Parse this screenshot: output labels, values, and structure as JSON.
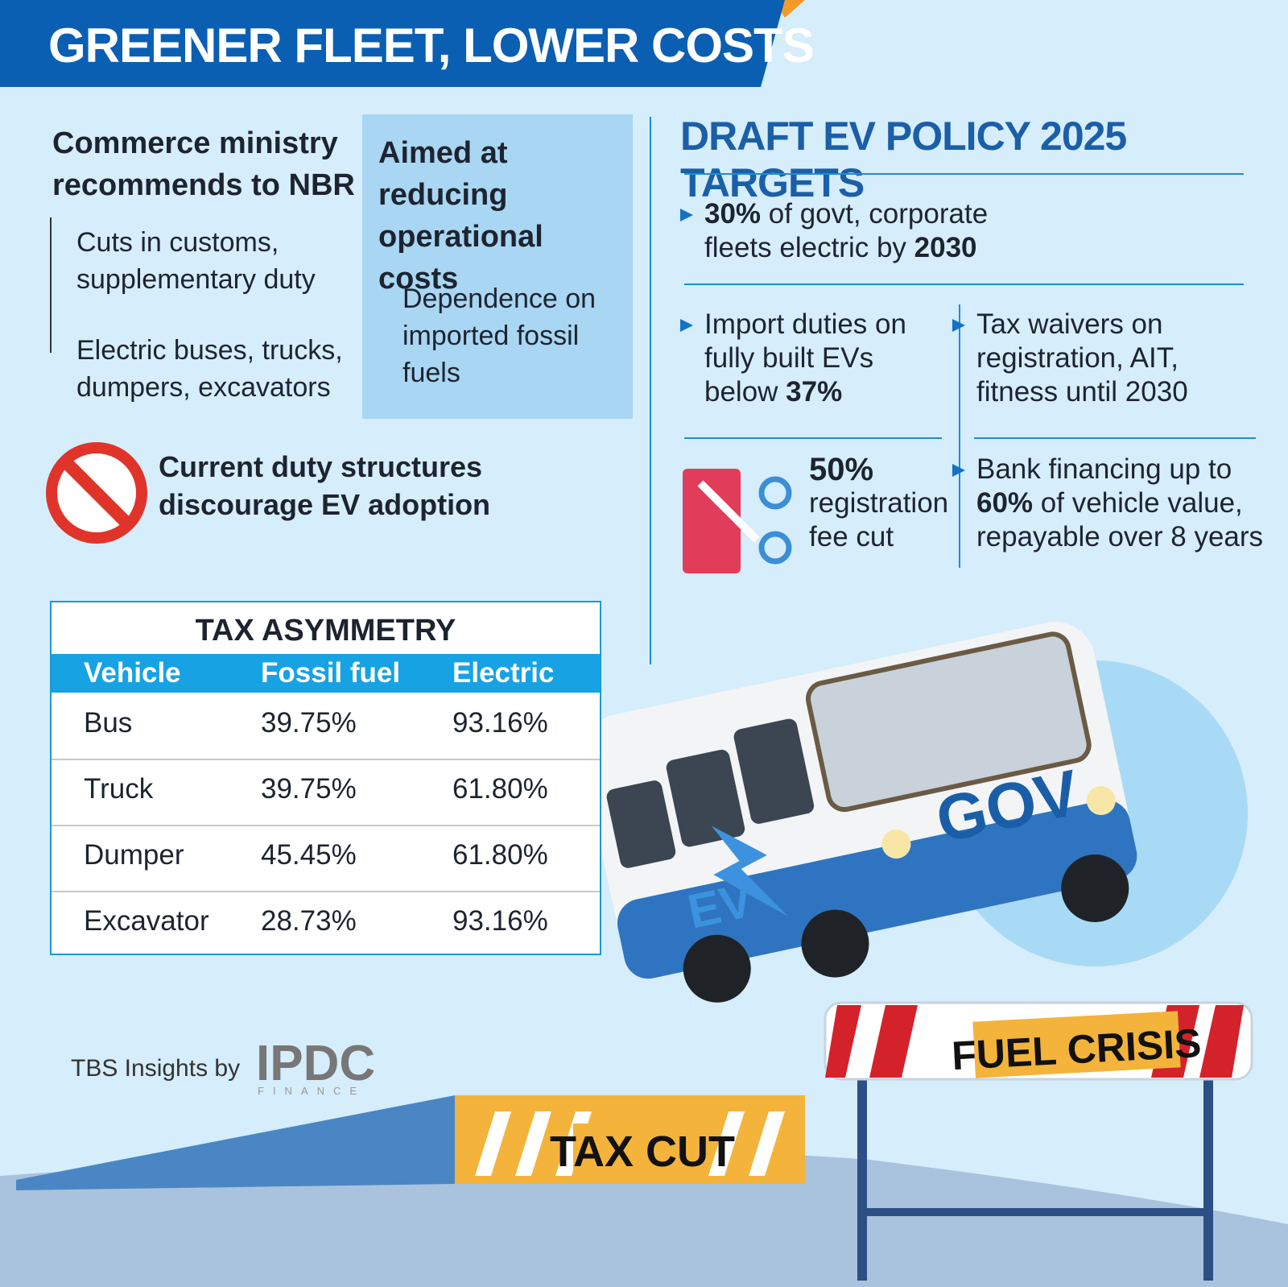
{
  "header": {
    "title": "GREENER FLEET, LOWER COSTS"
  },
  "recommendation": {
    "heading": "Commerce ministry recommends to NBR",
    "items": [
      "Cuts in customs, supplementary duty",
      "Electric buses, trucks, dumpers, excavators"
    ]
  },
  "aim": {
    "heading": "Aimed at reducing operational costs",
    "items": [
      "Dependence on imported fossil fuels"
    ]
  },
  "warning": {
    "text": "Current duty structures discourage EV adoption"
  },
  "table": {
    "title": "TAX ASYMMETRY",
    "columns": [
      "Vehicle",
      "Fossil fuel",
      "Electric"
    ],
    "rows": [
      [
        "Bus",
        "39.75%",
        "93.16%"
      ],
      [
        "Truck",
        "39.75%",
        "61.80%"
      ],
      [
        "Dumper",
        "45.45%",
        "61.80%"
      ],
      [
        "Excavator",
        "28.73%",
        "93.16%"
      ]
    ]
  },
  "targets": {
    "title": "DRAFT EV POLICY 2025 TARGETS",
    "items": [
      {
        "runs": [
          {
            "text": "30%",
            "bold": true
          },
          {
            "text": " of govt, corporate fleets electric by ",
            "bold": false
          },
          {
            "text": "2030",
            "bold": true
          }
        ]
      },
      {
        "runs": [
          {
            "text": "Import duties on fully built EVs below ",
            "bold": false
          },
          {
            "text": "37%",
            "bold": true
          }
        ]
      },
      {
        "runs": [
          {
            "text": "Tax waivers on registration, AIT, fitness until 2030",
            "bold": false
          }
        ]
      },
      {
        "runs": [
          {
            "text": "50%",
            "bold": true
          },
          {
            "text": "registration fee cut",
            "bold": false
          }
        ]
      },
      {
        "runs": [
          {
            "text": "Bank financing up to ",
            "bold": false
          },
          {
            "text": "60%",
            "bold": true
          },
          {
            "text": " of vehicle value, repayable over 8 years",
            "bold": false
          }
        ]
      }
    ]
  },
  "illustration": {
    "bus_label": "GOV",
    "bus_badge": "EV",
    "ramp": "TAX CUT",
    "barrier": "FUEL CRISIS"
  },
  "credit": {
    "text": "TBS Insights by",
    "logo": "IPDC",
    "logo_sub": "FINANCE"
  }
}
